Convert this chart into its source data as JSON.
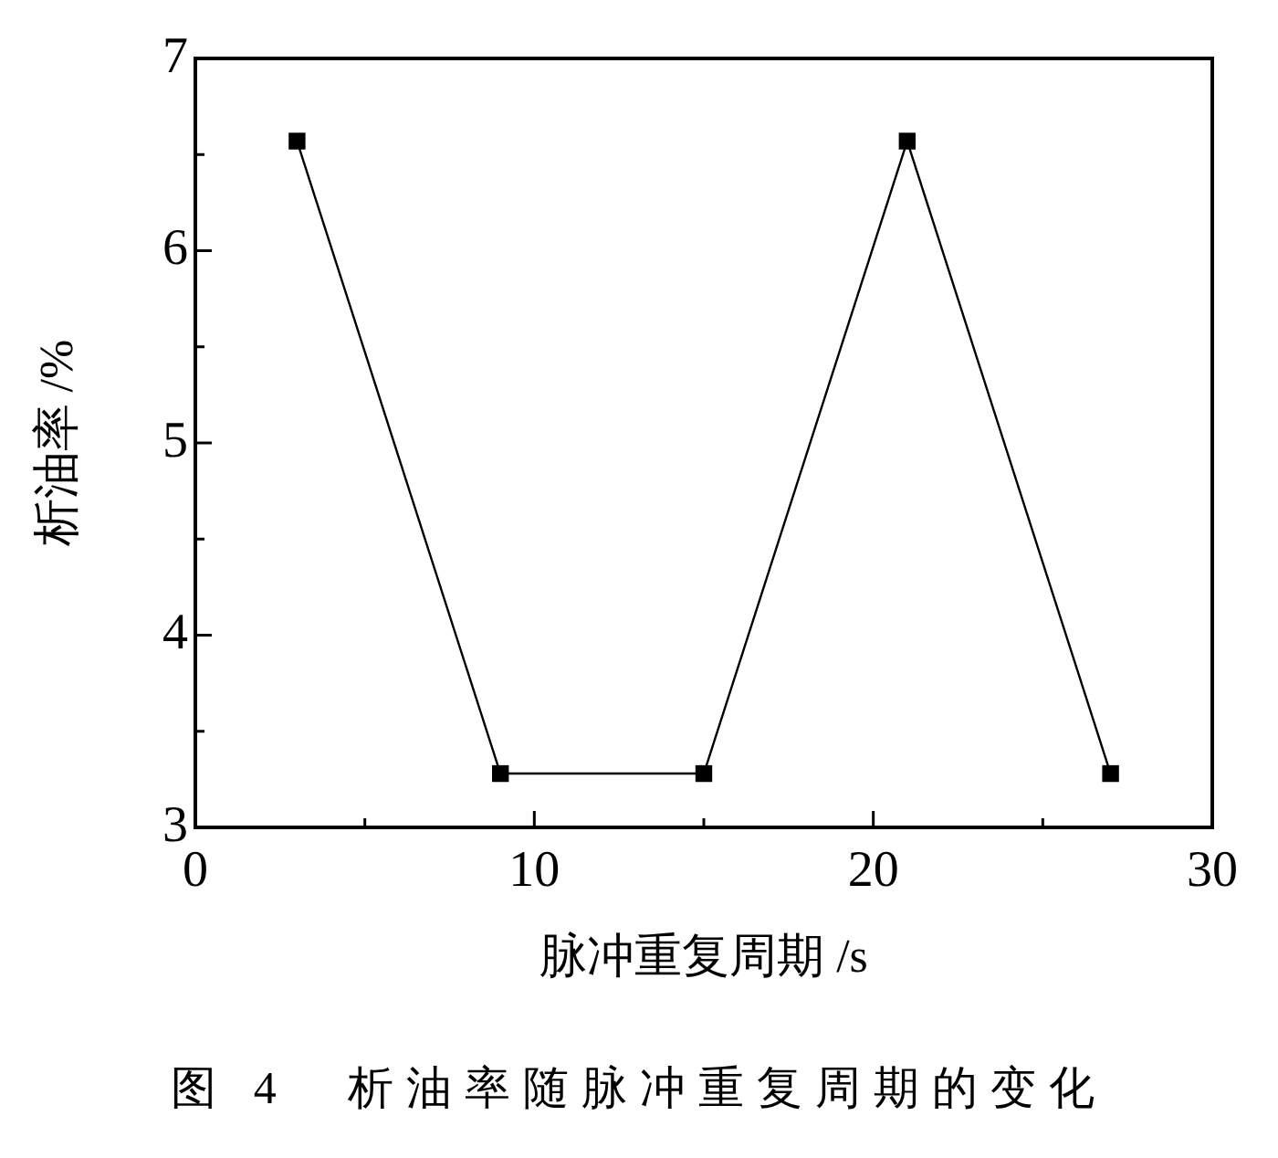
{
  "chart_data": {
    "type": "line",
    "xlabel": "脉冲重复周期 /s",
    "ylabel": "析油率 /%",
    "annotations": [
      "图 4　析油率随脉冲重复周期的变化"
    ],
    "x": [
      3,
      9,
      15,
      21,
      27
    ],
    "values": [
      6.57,
      3.28,
      3.28,
      6.57,
      3.28
    ],
    "color": "#000000",
    "marker": "square",
    "line_style": "solid",
    "xlim": [
      0,
      30
    ],
    "xticks": [
      0,
      {
        "value": 5,
        "label": null
      },
      10,
      {
        "value": 15,
        "label": null
      },
      20,
      {
        "value": 25,
        "label": null
      },
      30
    ],
    "ylim": [
      3,
      7
    ],
    "yticks": [
      3,
      {
        "value": 3.5,
        "label": null
      },
      4,
      {
        "value": 4.5,
        "label": null
      },
      5,
      {
        "value": 5.5,
        "label": null
      },
      6,
      {
        "value": 6.5,
        "label": null
      },
      7
    ]
  }
}
